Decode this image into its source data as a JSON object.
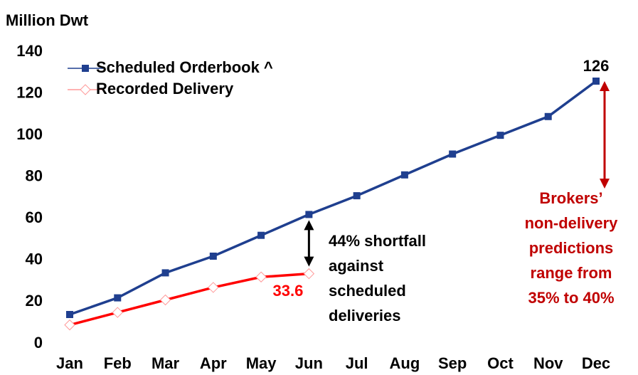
{
  "chart_data": {
    "type": "line",
    "title": "Million Dwt",
    "categories": [
      "Jan",
      "Feb",
      "Mar",
      "Apr",
      "May",
      "Jun",
      "Jul",
      "Aug",
      "Sep",
      "Oct",
      "Nov",
      "Dec"
    ],
    "series": [
      {
        "name": "Scheduled Orderbook ^",
        "color": "#1f3f8f",
        "marker": "square",
        "values": [
          14,
          22,
          34,
          42,
          52,
          62,
          71,
          81,
          91,
          100,
          109,
          126
        ]
      },
      {
        "name": "Recorded Delivery",
        "color": "#ff0000",
        "marker": "diamond",
        "values": [
          9,
          15,
          21,
          27,
          32,
          33.6,
          null,
          null,
          null,
          null,
          null,
          null
        ]
      }
    ],
    "ylim": [
      0,
      140
    ],
    "yticks": [
      0,
      20,
      40,
      60,
      80,
      100,
      120,
      140
    ],
    "grid": false,
    "legend": "top-left",
    "annotations": [
      {
        "lines": [
          "44% shortfall",
          "against",
          "scheduled",
          "deliveries"
        ],
        "color": "#000000"
      },
      {
        "lines": [
          "Brokers’",
          "non-delivery",
          "predictions",
          "range from",
          "35% to 40%"
        ],
        "color": "#c00000"
      }
    ]
  }
}
